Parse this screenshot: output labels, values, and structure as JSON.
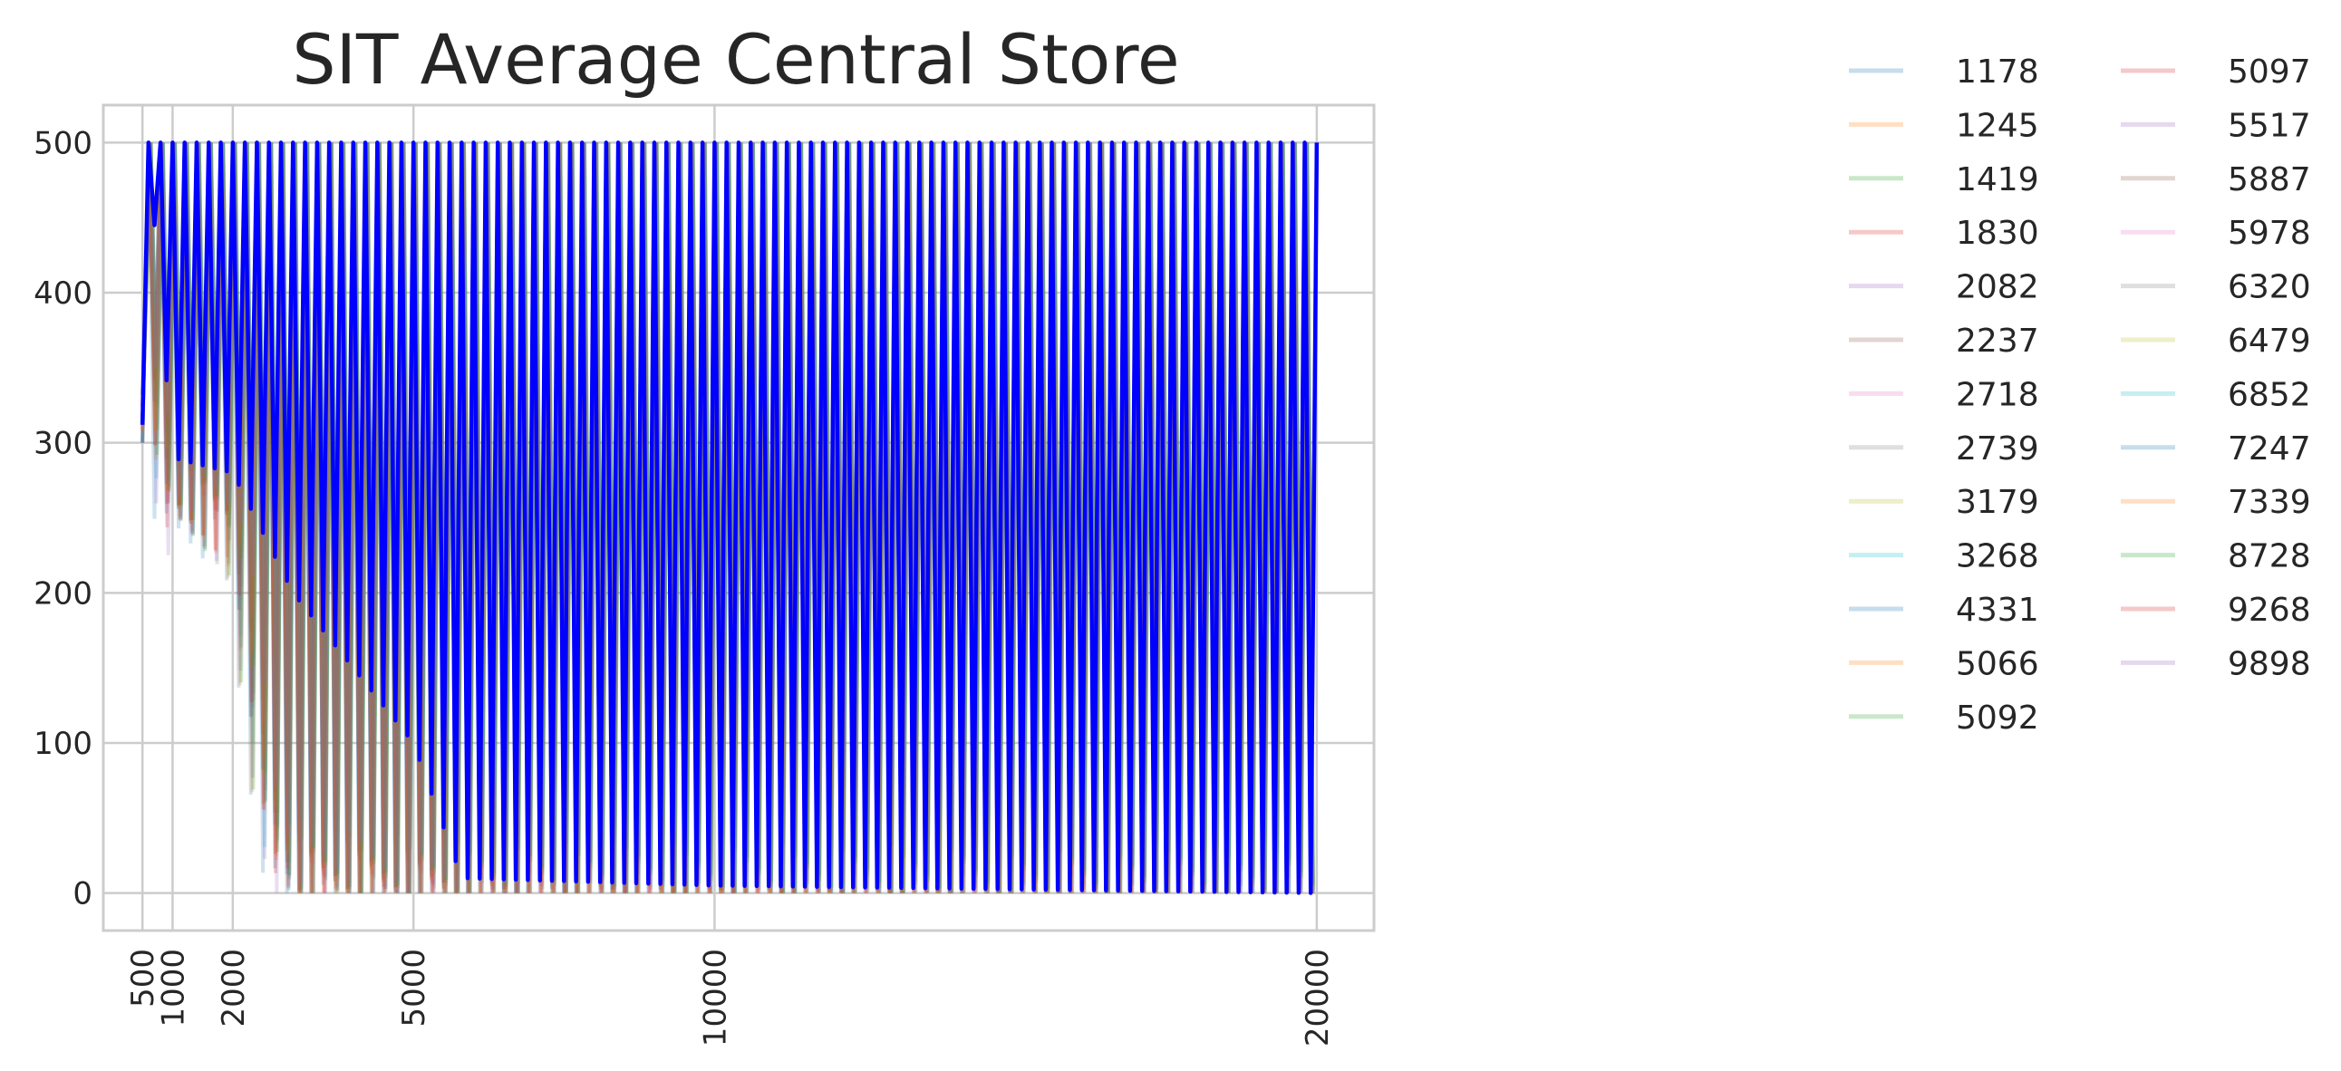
{
  "chart_data": {
    "type": "line",
    "title": "SIT Average Central Store",
    "xlabel": "",
    "ylabel": "",
    "xlim": [
      -150,
      20950
    ],
    "ylim": [
      -25,
      525
    ],
    "x_ticks": [
      500,
      1000,
      2000,
      5000,
      10000,
      20000
    ],
    "y_ticks": [
      0,
      100,
      200,
      300,
      400,
      500
    ],
    "grid": true,
    "legend_position": "outside-right, two columns",
    "oscillation_period": 200,
    "series": [
      {
        "name": "1178",
        "color": "#1f77b4"
      },
      {
        "name": "1245",
        "color": "#ff7f0e"
      },
      {
        "name": "1419",
        "color": "#2ca02c"
      },
      {
        "name": "1830",
        "color": "#d62728"
      },
      {
        "name": "2082",
        "color": "#9467bd"
      },
      {
        "name": "2237",
        "color": "#8c564b"
      },
      {
        "name": "2718",
        "color": "#e377c2"
      },
      {
        "name": "2739",
        "color": "#7f7f7f"
      },
      {
        "name": "3179",
        "color": "#bcbd22"
      },
      {
        "name": "3268",
        "color": "#17becf"
      },
      {
        "name": "4331",
        "color": "#1f77b4"
      },
      {
        "name": "5066",
        "color": "#ff7f0e"
      },
      {
        "name": "5092",
        "color": "#2ca02c"
      },
      {
        "name": "5097",
        "color": "#d62728"
      },
      {
        "name": "5517",
        "color": "#9467bd"
      },
      {
        "name": "5887",
        "color": "#8c564b"
      },
      {
        "name": "5978",
        "color": "#e377c2"
      },
      {
        "name": "6320",
        "color": "#7f7f7f"
      },
      {
        "name": "6479",
        "color": "#bcbd22"
      },
      {
        "name": "6852",
        "color": "#17becf"
      },
      {
        "name": "7247",
        "color": "#1f77b4"
      },
      {
        "name": "7339",
        "color": "#ff7f0e"
      },
      {
        "name": "8728",
        "color": "#2ca02c"
      },
      {
        "name": "9268",
        "color": "#d62728"
      },
      {
        "name": "9898",
        "color": "#9467bd"
      }
    ],
    "average_line": {
      "color": "#0000ff",
      "x_start": 500,
      "x_end": 20000,
      "start_y": 312,
      "peak_y": 500,
      "trough_profile": [
        {
          "x": 700,
          "y": 445
        },
        {
          "x": 1000,
          "y": 290
        },
        {
          "x": 2000,
          "y": 280
        },
        {
          "x": 3000,
          "y": 200
        },
        {
          "x": 4000,
          "y": 150
        },
        {
          "x": 5000,
          "y": 100
        },
        {
          "x": 5800,
          "y": 10
        },
        {
          "x": 10000,
          "y": 5
        },
        {
          "x": 20000,
          "y": 0
        }
      ]
    },
    "store_lines": {
      "trough_profile": [
        {
          "x": 700,
          "y": 330
        },
        {
          "x": 1000,
          "y": 260
        },
        {
          "x": 2000,
          "y": 250
        },
        {
          "x": 2600,
          "y": 60
        },
        {
          "x": 3000,
          "y": 10
        },
        {
          "x": 5000,
          "y": 3
        },
        {
          "x": 20000,
          "y": 0
        }
      ]
    }
  }
}
